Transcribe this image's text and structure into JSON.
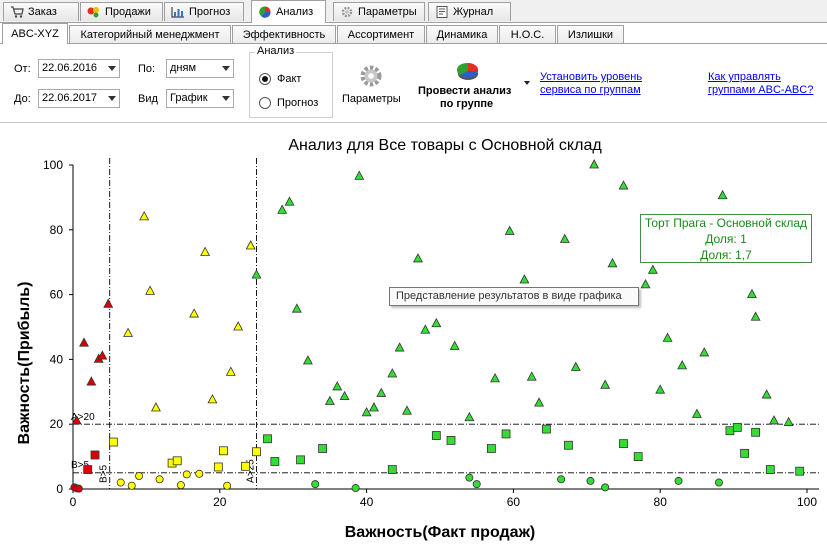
{
  "main_tabs": [
    {
      "label": "Заказ",
      "icon": "order-icon"
    },
    {
      "label": "Продажи",
      "icon": "sales-icon"
    },
    {
      "label": "Прогноз",
      "icon": "forecast-icon"
    },
    {
      "label": "Анализ",
      "icon": "analysis-icon",
      "active": true
    },
    {
      "label": "Параметры",
      "icon": "gear-icon"
    },
    {
      "label": "Журнал",
      "icon": "journal-icon"
    }
  ],
  "sub_tabs": [
    {
      "label": "ABC-XYZ",
      "active": true
    },
    {
      "label": "Категорийный менеджмент"
    },
    {
      "label": "Эффективность"
    },
    {
      "label": "Ассортимент"
    },
    {
      "label": "Динамика"
    },
    {
      "label": "Н.О.С."
    },
    {
      "label": "Излишки"
    }
  ],
  "toolbar": {
    "from_label": "От:",
    "from_value": "22.06.2016",
    "to_label": "До:",
    "to_value": "22.06.2017",
    "by_label": "По:",
    "by_value": "дням",
    "view_label": "Вид",
    "view_value": "График",
    "analysis_group_title": "Анализ",
    "radio_fact": "Факт",
    "radio_forecast": "Прогноз",
    "selected_radio": "Факт",
    "params_label": "Параметры",
    "run_analysis_line1": "Провести анализ",
    "run_analysis_line2": "по группе",
    "link_service_line1": "Установить уровень",
    "link_service_line2": "сервиса по группам",
    "link_howto_line1": "Как управлять",
    "link_howto_line2": "группами ABC-ABC?"
  },
  "tooltip": "Представление результатов в виде графика",
  "infobox": {
    "line1": "Торт Прага - Основной склад",
    "line2": "Доля: 1",
    "line3": "Доля: 1,7"
  },
  "colors": {
    "red": "#dd0000",
    "yellow": "#ffff00",
    "green": "#33dd33"
  },
  "chart_data": {
    "type": "scatter",
    "title": "Анализ для Все товары с Основной склад",
    "xlabel": "Важность(Факт продаж)",
    "ylabel": "Важность(Прибыль)",
    "xlim": [
      0,
      100
    ],
    "ylim": [
      0,
      100
    ],
    "x_ticks": [
      0,
      20,
      40,
      60,
      80,
      100
    ],
    "y_ticks": [
      0,
      20,
      40,
      60,
      80,
      100
    ],
    "threshold_labels": {
      "y20": "A>20",
      "y5": "B>5",
      "x5": "B>5",
      "x25": "A>25"
    },
    "thresholds": {
      "x": [
        5,
        25
      ],
      "y": [
        5,
        20
      ]
    },
    "series": [
      {
        "color": "red",
        "marker": "circle",
        "points": [
          [
            0.2,
            0.5
          ],
          [
            0.5,
            0.2
          ],
          [
            0.8,
            0.1
          ]
        ]
      },
      {
        "color": "red",
        "marker": "square",
        "points": [
          [
            2,
            6
          ],
          [
            3,
            10.5
          ]
        ]
      },
      {
        "color": "red",
        "marker": "triangle",
        "points": [
          [
            0.5,
            21
          ],
          [
            1.5,
            45
          ],
          [
            2.5,
            33
          ],
          [
            3.5,
            40
          ],
          [
            4,
            41
          ],
          [
            4.8,
            57
          ]
        ]
      },
      {
        "color": "yellow",
        "marker": "circle",
        "points": [
          [
            6.5,
            2
          ],
          [
            8,
            1
          ],
          [
            9,
            4
          ],
          [
            11.8,
            3
          ],
          [
            14.7,
            1.2
          ],
          [
            15.5,
            4.5
          ],
          [
            17.2,
            4.7
          ],
          [
            21,
            1
          ]
        ]
      },
      {
        "color": "yellow",
        "marker": "square",
        "points": [
          [
            5.5,
            14.5
          ],
          [
            13.5,
            8
          ],
          [
            14.2,
            8.7
          ],
          [
            19.8,
            6.8
          ],
          [
            20.5,
            11.8
          ],
          [
            23.5,
            7
          ],
          [
            25,
            11.5
          ]
        ]
      },
      {
        "color": "yellow",
        "marker": "triangle",
        "points": [
          [
            7.5,
            48
          ],
          [
            9.7,
            84
          ],
          [
            10.5,
            61
          ],
          [
            11.3,
            25
          ],
          [
            16.5,
            54
          ],
          [
            18,
            73
          ],
          [
            19,
            27.5
          ],
          [
            21.5,
            36
          ],
          [
            22.5,
            50
          ],
          [
            24.2,
            75
          ]
        ]
      },
      {
        "color": "green",
        "marker": "circle",
        "points": [
          [
            33,
            1.5
          ],
          [
            38.5,
            0.3
          ],
          [
            54,
            3.5
          ],
          [
            55,
            1.5
          ],
          [
            66.5,
            3
          ],
          [
            70.5,
            2.5
          ],
          [
            72.5,
            0.5
          ],
          [
            82.5,
            2.5
          ],
          [
            88,
            2
          ]
        ]
      },
      {
        "color": "green",
        "marker": "square",
        "points": [
          [
            26.5,
            15.5
          ],
          [
            27.5,
            8.5
          ],
          [
            31,
            9
          ],
          [
            34,
            12.5
          ],
          [
            43.5,
            6
          ],
          [
            49.5,
            16.5
          ],
          [
            51.5,
            15
          ],
          [
            57,
            12.5
          ],
          [
            59,
            17
          ],
          [
            64.5,
            18.5
          ],
          [
            67.5,
            13.5
          ],
          [
            75,
            14
          ],
          [
            77,
            10
          ],
          [
            89.5,
            18
          ],
          [
            90.5,
            19
          ],
          [
            91.5,
            11
          ],
          [
            93,
            17.5
          ],
          [
            95,
            6
          ],
          [
            99,
            5.5
          ]
        ]
      },
      {
        "color": "green",
        "marker": "triangle",
        "points": [
          [
            25,
            66
          ],
          [
            28.5,
            86
          ],
          [
            29.5,
            88.5
          ],
          [
            30.5,
            55.5
          ],
          [
            32,
            39.5
          ],
          [
            35,
            27
          ],
          [
            36,
            31.5
          ],
          [
            37,
            28.5
          ],
          [
            39,
            96.5
          ],
          [
            40,
            23.5
          ],
          [
            41,
            25
          ],
          [
            42,
            29.5
          ],
          [
            43.5,
            35.5
          ],
          [
            44.5,
            43.5
          ],
          [
            45.5,
            24
          ],
          [
            47,
            71
          ],
          [
            48,
            49
          ],
          [
            49.5,
            51
          ],
          [
            52,
            44
          ],
          [
            54,
            22
          ],
          [
            57.5,
            34
          ],
          [
            59.5,
            79.5
          ],
          [
            61.5,
            64.5
          ],
          [
            62.5,
            34.5
          ],
          [
            63.5,
            26.5
          ],
          [
            67,
            77
          ],
          [
            68.5,
            37.5
          ],
          [
            71,
            100
          ],
          [
            72.5,
            32
          ],
          [
            73.5,
            69.5
          ],
          [
            75,
            93.5
          ],
          [
            78,
            63
          ],
          [
            79,
            67.5
          ],
          [
            80,
            30.5
          ],
          [
            81,
            46.5
          ],
          [
            83,
            38
          ],
          [
            85,
            23
          ],
          [
            86,
            42
          ],
          [
            88.5,
            90.5
          ],
          [
            92.5,
            60
          ],
          [
            93,
            53
          ],
          [
            94.5,
            29
          ],
          [
            95.5,
            21
          ],
          [
            97.5,
            20.5
          ]
        ]
      }
    ]
  }
}
